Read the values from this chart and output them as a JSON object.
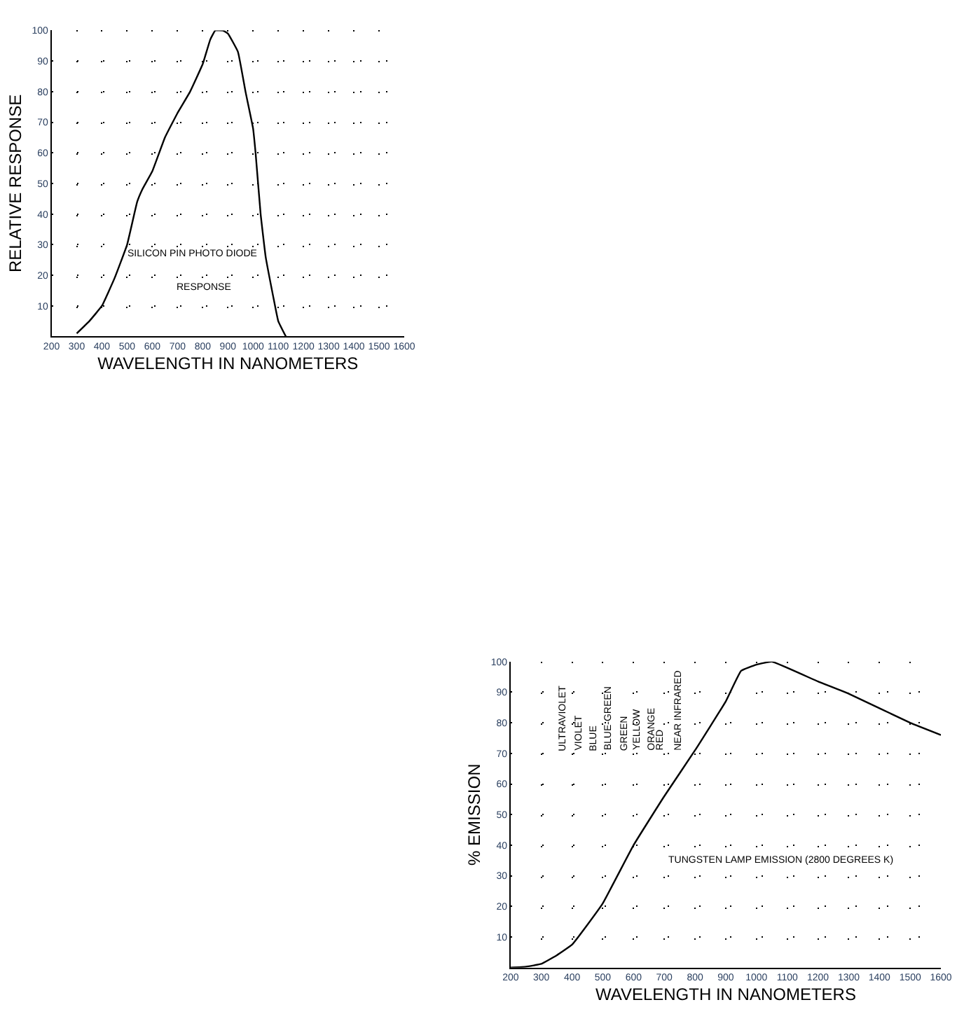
{
  "chart_data": [
    {
      "type": "line",
      "xlabel": "WAVELENGTH IN NANOMETERS",
      "ylabel": "RELATIVE RESPONSE",
      "x": [
        300,
        350,
        400,
        450,
        500,
        540,
        560,
        600,
        650,
        700,
        750,
        800,
        830,
        850,
        880,
        900,
        940,
        970,
        1000,
        1010,
        1030,
        1050,
        1080,
        1100,
        1130
      ],
      "series": [
        {
          "color": "#000000",
          "values": [
            1,
            5,
            10,
            19,
            30,
            44,
            48,
            54,
            65,
            73,
            80,
            89,
            97,
            100,
            100,
            99,
            93,
            80,
            68,
            60,
            40,
            26,
            13,
            5,
            0
          ]
        }
      ],
      "xlim": [
        200,
        1600
      ],
      "xticks": [
        200,
        300,
        400,
        500,
        600,
        700,
        800,
        900,
        1000,
        1100,
        1200,
        1300,
        1400,
        1500,
        1600
      ],
      "ylim": [
        0,
        100
      ],
      "yticks": [
        10,
        20,
        30,
        40,
        50,
        60,
        70,
        80,
        90,
        100
      ],
      "grid": true,
      "line_style": "solid",
      "annotations": [
        "SILICON PIN PHOTO DIODE",
        "RESPONSE"
      ]
    },
    {
      "type": "line",
      "xlabel": "WAVELENGTH IN NANOMETERS",
      "ylabel": "% EMISSION",
      "x": [
        200,
        250,
        300,
        350,
        400,
        450,
        500,
        600,
        700,
        800,
        900,
        950,
        1000,
        1050,
        1200,
        1300,
        1500,
        1600
      ],
      "series": [
        {
          "color": "#000000",
          "values": [
            0,
            0.3,
            1.2,
            4,
            7.5,
            14,
            21,
            40,
            56,
            71,
            87,
            97,
            99,
            100,
            93.5,
            89.5,
            80,
            76
          ]
        }
      ],
      "xlim": [
        200,
        1600
      ],
      "xticks": [
        200,
        300,
        400,
        500,
        600,
        700,
        800,
        900,
        1000,
        1100,
        1200,
        1300,
        1400,
        1500,
        1600
      ],
      "ylim": [
        0,
        100
      ],
      "yticks": [
        10,
        20,
        30,
        40,
        50,
        60,
        70,
        80,
        90,
        100
      ],
      "grid": true,
      "line_style": "solid",
      "annotations": [
        "TUNGSTEN LAMP EMISSION (2800 DEGREES K)",
        "ULTRAVIOLET",
        "VIOLET",
        "BLUE",
        "BLUE-GREEN",
        "GREEN",
        "YELLOW",
        "ORANGE",
        "RED",
        "NEAR INFRARED"
      ]
    }
  ]
}
